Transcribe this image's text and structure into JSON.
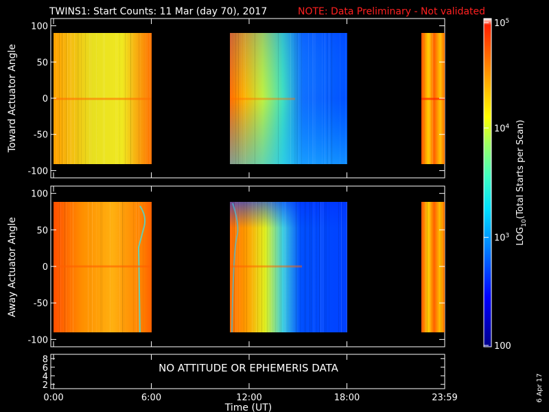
{
  "chart_data": [
    {
      "type": "heatmap",
      "title": "TWINS1: Start Counts: 11 Mar (day  70), 2017",
      "note": "NOTE: Data Preliminary - Not validated",
      "panel": "top",
      "ylabel": "Toward Actuator Angle",
      "ylim": [
        -110,
        110
      ],
      "yticks": [
        "100",
        "50",
        "0",
        "-50",
        "-100"
      ],
      "xlim_hours": [
        0,
        24
      ],
      "coverage_hours": [
        [
          0.0,
          6.0
        ],
        [
          10.8,
          18.0
        ],
        [
          22.8,
          24.0
        ]
      ],
      "grid": false
    },
    {
      "type": "heatmap",
      "panel": "middle",
      "ylabel": "Away Actuator Angle",
      "ylim": [
        -110,
        110
      ],
      "yticks": [
        "100",
        "50",
        "0",
        "-50",
        "-100"
      ],
      "xlim_hours": [
        0,
        24
      ],
      "coverage_hours": [
        [
          0.0,
          6.0
        ],
        [
          10.8,
          18.0
        ],
        [
          22.8,
          24.0
        ]
      ],
      "grid": false
    },
    {
      "type": "line",
      "panel": "bottom",
      "yticks": [
        "8",
        "6",
        "4",
        "2"
      ],
      "ylim": [
        1,
        9
      ],
      "message": "NO ATTITUDE OR EPHEMERIS DATA"
    }
  ],
  "x_axis": {
    "label": "Time (UT)",
    "ticks": [
      "0:00",
      "6:00",
      "12:00",
      "18:00",
      "23:59"
    ],
    "tick_hours": [
      0,
      6,
      12,
      18,
      24
    ]
  },
  "colorbar": {
    "label": "LOG10(Total Starts per Scan)",
    "label_prefix": "LOG",
    "label_sub": "10",
    "label_suffix": "(Total Starts per Scan)",
    "ticks": [
      "10",
      "10",
      "10",
      "100"
    ],
    "tick_exponents": [
      "5",
      "4",
      "3",
      ""
    ],
    "tick_values": [
      100000,
      10000,
      1000,
      100
    ],
    "range": [
      100,
      100000
    ],
    "scale": "log",
    "colormap": [
      "#00008b",
      "#0000ff",
      "#0080ff",
      "#00e0ff",
      "#40ffc0",
      "#a0ff60",
      "#ffff00",
      "#ffb000",
      "#ff6000",
      "#ff2000",
      "#ffffff"
    ]
  },
  "side_label": "6 Apr 17",
  "colors": {
    "note": "#ff2020",
    "background": "#000000",
    "axes": "#ffffff"
  }
}
